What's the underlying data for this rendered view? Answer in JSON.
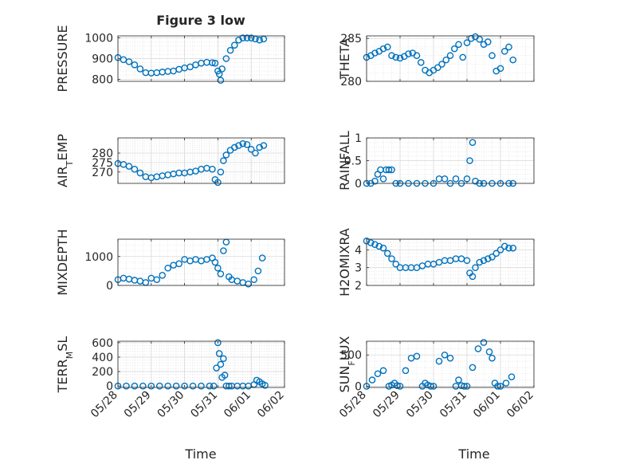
{
  "figure": {
    "title": "Figure 3 low",
    "xlabel": "Time",
    "date_ticks": [
      "05/28",
      "05/29",
      "05/30",
      "05/31",
      "06/01",
      "06/02"
    ]
  },
  "colors": {
    "marker": "#0072BD",
    "grid": "#d9d9d9",
    "axis": "#262626",
    "text": "#262626"
  },
  "chart_data": [
    {
      "type": "scatter",
      "ylabel": "PRESSURE",
      "ylim": [
        790,
        1010
      ],
      "yticks": [
        800,
        900,
        1000
      ],
      "xlim": [
        "05/28",
        "06/02"
      ],
      "grid": true,
      "x": [
        "05/28 00:00",
        "05/28 04:00",
        "05/28 08:00",
        "05/28 12:00",
        "05/28 16:00",
        "05/28 20:00",
        "05/29 00:00",
        "05/29 04:00",
        "05/29 08:00",
        "05/29 12:00",
        "05/29 16:00",
        "05/29 20:00",
        "05/30 00:00",
        "05/30 04:00",
        "05/30 08:00",
        "05/30 12:00",
        "05/30 16:00",
        "05/30 20:00",
        "05/30 22:00",
        "05/31 00:00",
        "05/31 01:00",
        "05/31 02:00",
        "05/31 03:00",
        "05/31 06:00",
        "05/31 09:00",
        "05/31 12:00",
        "05/31 15:00",
        "05/31 18:00",
        "05/31 21:00",
        "06/01 00:00",
        "06/01 03:00",
        "06/01 06:00",
        "06/01 09:00"
      ],
      "y": [
        905,
        895,
        885,
        870,
        850,
        832,
        830,
        832,
        835,
        838,
        840,
        848,
        855,
        860,
        870,
        878,
        882,
        880,
        878,
        840,
        825,
        795,
        850,
        900,
        940,
        965,
        990,
        1000,
        1000,
        1000,
        995,
        990,
        995
      ]
    },
    {
      "type": "scatter",
      "ylabel": "THETA",
      "ylim": [
        280,
        285.3
      ],
      "yticks": [
        280,
        285
      ],
      "xlim": [
        "05/28",
        "06/02"
      ],
      "grid": true,
      "x": [
        "05/28 00:00",
        "05/28 03:00",
        "05/28 06:00",
        "05/28 09:00",
        "05/28 12:00",
        "05/28 15:00",
        "05/28 18:00",
        "05/28 21:00",
        "05/29 00:00",
        "05/29 03:00",
        "05/29 06:00",
        "05/29 09:00",
        "05/29 12:00",
        "05/29 15:00",
        "05/29 18:00",
        "05/29 21:00",
        "05/30 00:00",
        "05/30 03:00",
        "05/30 06:00",
        "05/30 09:00",
        "05/30 12:00",
        "05/30 15:00",
        "05/30 18:00",
        "05/30 21:00",
        "05/31 00:00",
        "05/31 03:00",
        "05/31 06:00",
        "05/31 09:00",
        "05/31 12:00",
        "05/31 15:00",
        "05/31 18:00",
        "05/31 21:00",
        "06/01 00:00",
        "06/01 03:00",
        "06/01 06:00",
        "06/01 09:00"
      ],
      "y": [
        282.8,
        283.0,
        283.3,
        283.5,
        283.8,
        284.0,
        283.0,
        282.8,
        282.7,
        282.9,
        283.2,
        283.3,
        283.0,
        282.2,
        281.3,
        281.0,
        281.3,
        281.6,
        282.0,
        282.5,
        283.0,
        283.8,
        284.3,
        282.8,
        284.5,
        285.0,
        285.2,
        284.9,
        284.3,
        284.6,
        283.0,
        281.2,
        281.5,
        283.5,
        284.0,
        282.5
      ]
    },
    {
      "type": "scatter",
      "ylabel": "AIR_TEMP",
      "ylim": [
        264,
        288
      ],
      "yticks": [
        270,
        275,
        280
      ],
      "xlim": [
        "05/28",
        "06/02"
      ],
      "grid": true,
      "x": [
        "05/28 00:00",
        "05/28 04:00",
        "05/28 08:00",
        "05/28 12:00",
        "05/28 16:00",
        "05/28 20:00",
        "05/29 00:00",
        "05/29 04:00",
        "05/29 08:00",
        "05/29 12:00",
        "05/29 16:00",
        "05/29 20:00",
        "05/30 00:00",
        "05/30 04:00",
        "05/30 08:00",
        "05/30 12:00",
        "05/30 16:00",
        "05/30 20:00",
        "05/30 22:00",
        "05/31 00:00",
        "05/31 02:00",
        "05/31 04:00",
        "05/31 06:00",
        "05/31 09:00",
        "05/31 12:00",
        "05/31 15:00",
        "05/31 18:00",
        "05/31 21:00",
        "06/01 00:00",
        "06/01 03:00",
        "06/01 06:00",
        "06/01 09:00"
      ],
      "y": [
        274.5,
        274,
        273,
        271.5,
        269.5,
        267.5,
        267,
        267.5,
        268,
        268.5,
        269,
        269.5,
        269.5,
        270,
        270.5,
        271.5,
        272,
        271.5,
        266,
        264.5,
        270,
        276,
        279,
        281.5,
        283,
        284,
        285,
        284.5,
        282,
        280,
        283,
        284
      ]
    },
    {
      "type": "scatter",
      "ylabel": "RAINFALL",
      "ylim": [
        0,
        1
      ],
      "yticks": [
        0,
        0.5,
        1
      ],
      "xlim": [
        "05/28",
        "06/02"
      ],
      "grid": true,
      "x": [
        "05/28 00:00",
        "05/28 03:00",
        "05/28 06:00",
        "05/28 08:00",
        "05/28 10:00",
        "05/28 12:00",
        "05/28 14:00",
        "05/28 16:00",
        "05/28 18:00",
        "05/28 21:00",
        "05/29 00:00",
        "05/29 06:00",
        "05/29 12:00",
        "05/29 18:00",
        "05/30 00:00",
        "05/30 04:00",
        "05/30 08:00",
        "05/30 12:00",
        "05/30 16:00",
        "05/30 20:00",
        "05/31 00:00",
        "05/31 02:00",
        "05/31 04:00",
        "05/31 06:00",
        "05/31 09:00",
        "05/31 12:00",
        "05/31 18:00",
        "06/01 00:00",
        "06/01 06:00",
        "06/01 09:00"
      ],
      "y": [
        0,
        0,
        0.05,
        0.2,
        0.3,
        0.1,
        0.3,
        0.3,
        0.3,
        0,
        0,
        0,
        0,
        0,
        0,
        0.1,
        0.1,
        0,
        0.1,
        0,
        0.1,
        0.5,
        0.9,
        0.05,
        0,
        0,
        0,
        0,
        0,
        0
      ]
    },
    {
      "type": "scatter",
      "ylabel": "MIXDEPTH",
      "ylim": [
        0,
        1600
      ],
      "yticks": [
        0,
        1000
      ],
      "xlim": [
        "05/28",
        "06/02"
      ],
      "grid": true,
      "x": [
        "05/28 00:00",
        "05/28 04:00",
        "05/28 08:00",
        "05/28 12:00",
        "05/28 16:00",
        "05/28 20:00",
        "05/29 00:00",
        "05/29 04:00",
        "05/29 08:00",
        "05/29 12:00",
        "05/29 16:00",
        "05/29 20:00",
        "05/30 00:00",
        "05/30 04:00",
        "05/30 08:00",
        "05/30 12:00",
        "05/30 16:00",
        "05/30 20:00",
        "05/30 22:00",
        "05/31 00:00",
        "05/31 02:00",
        "05/31 04:00",
        "05/31 06:00",
        "05/31 08:00",
        "05/31 10:00",
        "05/31 14:00",
        "05/31 18:00",
        "05/31 22:00",
        "06/01 02:00",
        "06/01 05:00",
        "06/01 08:00"
      ],
      "y": [
        200,
        250,
        220,
        180,
        150,
        100,
        250,
        200,
        350,
        600,
        700,
        750,
        900,
        850,
        900,
        850,
        900,
        950,
        800,
        600,
        400,
        1200,
        1500,
        300,
        200,
        150,
        100,
        50,
        200,
        500,
        950
      ]
    },
    {
      "type": "scatter",
      "ylabel": "H2OMIXRA",
      "ylim": [
        2,
        4.6
      ],
      "yticks": [
        2,
        3,
        4
      ],
      "xlim": [
        "05/28",
        "06/02"
      ],
      "grid": true,
      "x": [
        "05/28 00:00",
        "05/28 03:00",
        "05/28 06:00",
        "05/28 09:00",
        "05/28 12:00",
        "05/28 15:00",
        "05/28 18:00",
        "05/28 21:00",
        "05/29 00:00",
        "05/29 04:00",
        "05/29 08:00",
        "05/29 12:00",
        "05/29 16:00",
        "05/29 20:00",
        "05/30 00:00",
        "05/30 04:00",
        "05/30 08:00",
        "05/30 12:00",
        "05/30 16:00",
        "05/30 20:00",
        "05/31 00:00",
        "05/31 02:00",
        "05/31 04:00",
        "05/31 06:00",
        "05/31 09:00",
        "05/31 12:00",
        "05/31 15:00",
        "05/31 18:00",
        "05/31 21:00",
        "06/01 00:00",
        "06/01 03:00",
        "06/01 06:00",
        "06/01 09:00"
      ],
      "y": [
        4.5,
        4.4,
        4.3,
        4.2,
        4.1,
        3.8,
        3.5,
        3.2,
        3.0,
        3.0,
        3.0,
        3.0,
        3.1,
        3.2,
        3.2,
        3.3,
        3.4,
        3.4,
        3.5,
        3.5,
        3.4,
        2.7,
        2.5,
        3.0,
        3.3,
        3.4,
        3.5,
        3.6,
        3.8,
        4.0,
        4.2,
        4.1,
        4.1
      ]
    },
    {
      "type": "scatter",
      "ylabel": "TERR_MSL",
      "ylim": [
        -20,
        620
      ],
      "yticks": [
        0,
        200,
        400,
        600
      ],
      "xlim": [
        "05/28",
        "06/02"
      ],
      "grid": true,
      "x": [
        "05/28 00:00",
        "05/28 06:00",
        "05/28 12:00",
        "05/28 18:00",
        "05/29 00:00",
        "05/29 06:00",
        "05/29 12:00",
        "05/29 18:00",
        "05/30 00:00",
        "05/30 06:00",
        "05/30 12:00",
        "05/30 18:00",
        "05/30 21:00",
        "05/30 23:00",
        "05/31 00:00",
        "05/31 01:00",
        "05/31 02:00",
        "05/31 03:00",
        "05/31 04:00",
        "05/31 05:00",
        "05/31 06:00",
        "05/31 08:00",
        "05/31 10:00",
        "05/31 14:00",
        "05/31 18:00",
        "05/31 22:00",
        "06/01 02:00",
        "06/01 04:00",
        "06/01 06:00",
        "06/01 08:00",
        "06/01 10:00"
      ],
      "y": [
        0,
        0,
        0,
        0,
        0,
        0,
        0,
        0,
        0,
        0,
        0,
        0,
        0,
        250,
        600,
        450,
        300,
        120,
        380,
        150,
        0,
        0,
        0,
        0,
        0,
        0,
        20,
        80,
        60,
        30,
        10
      ]
    },
    {
      "type": "scatter",
      "ylabel": "SUN_FLUX",
      "ylim": [
        -20,
        720
      ],
      "yticks": [
        0,
        500
      ],
      "xlim": [
        "05/28",
        "06/02"
      ],
      "grid": true,
      "x": [
        "05/28 00:00",
        "05/28 04:00",
        "05/28 08:00",
        "05/28 12:00",
        "05/28 16:00",
        "05/28 18:00",
        "05/28 20:00",
        "05/28 22:00",
        "05/29 00:00",
        "05/29 04:00",
        "05/29 08:00",
        "05/29 12:00",
        "05/29 16:00",
        "05/29 18:00",
        "05/29 20:00",
        "05/29 22:00",
        "05/30 00:00",
        "05/30 04:00",
        "05/30 08:00",
        "05/30 12:00",
        "05/30 16:00",
        "05/30 18:00",
        "05/30 20:00",
        "05/30 22:00",
        "05/31 00:00",
        "05/31 04:00",
        "05/31 08:00",
        "05/31 12:00",
        "05/31 16:00",
        "05/31 18:00",
        "05/31 20:00",
        "05/31 22:00",
        "06/01 00:00",
        "06/01 04:00",
        "06/01 08:00"
      ],
      "y": [
        0,
        100,
        200,
        250,
        0,
        20,
        50,
        10,
        0,
        250,
        450,
        480,
        0,
        50,
        20,
        0,
        0,
        400,
        500,
        450,
        0,
        100,
        10,
        0,
        0,
        300,
        600,
        700,
        550,
        450,
        50,
        0,
        0,
        50,
        150
      ]
    }
  ]
}
